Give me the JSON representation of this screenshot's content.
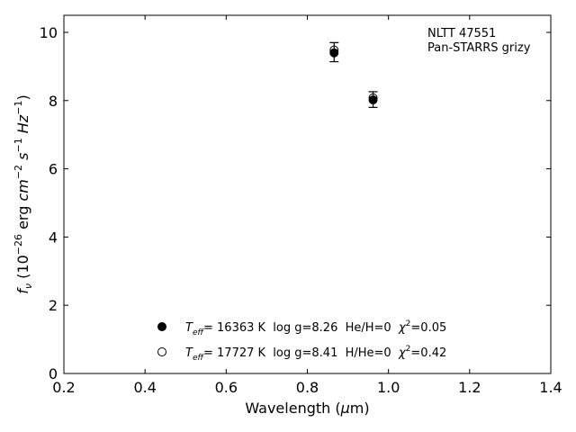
{
  "chart_data": {
    "type": "scatter",
    "annotation_lines": [
      "NLTT 47551",
      "Pan-STARRS grizy"
    ],
    "xlim": [
      0.2,
      1.4
    ],
    "ylim": [
      0,
      10.5
    ],
    "x_ticks": [
      0.2,
      0.4,
      0.6,
      0.8,
      1.0,
      1.2,
      1.4
    ],
    "x_tick_labels": [
      "0.2",
      "0.4",
      "0.6",
      "0.8",
      "1.0",
      "1.2",
      "1.4"
    ],
    "y_ticks": [
      0,
      2,
      4,
      6,
      8,
      10
    ],
    "y_tick_labels": [
      "0",
      "2",
      "4",
      "6",
      "8",
      "10"
    ],
    "xlabel": {
      "base": "Wavelength (",
      "math": "μ",
      "rest": "m)"
    },
    "ylabel": {
      "f": "f",
      "f_sub": "ν",
      "open": " (10",
      "exp": "−26",
      "erg": " erg ",
      "cm": "cm",
      "cm_exp": "−2",
      "s": "s",
      "s_exp": "−1",
      "hz": "Hz",
      "hz_exp": "−1",
      "close": ")"
    },
    "grid": false,
    "legend_position": "lower-center",
    "series": [
      {
        "marker": "filled-circle",
        "color": "#000000",
        "legend": {
          "t": "T",
          "t_sub": "eff",
          "main": "= 16363 K  log g=8.26  He/H=0  ",
          "chi": "χ",
          "chi_exp": "2",
          "chi_val": "=0.05"
        },
        "points": [
          {
            "x": 0.866,
            "y": 9.4
          },
          {
            "x": 0.962,
            "y": 8.02
          }
        ]
      },
      {
        "marker": "open-circle",
        "color": "#000000",
        "legend": {
          "t": "T",
          "t_sub": "eff",
          "main": "= 17727 K  log g=8.41  H/He=0  ",
          "chi": "χ",
          "chi_exp": "2",
          "chi_val": "=0.42"
        },
        "points": [
          {
            "x": 0.866,
            "y": 9.48
          },
          {
            "x": 0.962,
            "y": 8.08
          }
        ]
      }
    ],
    "observed": {
      "marker": "errorbar",
      "color": "#000000",
      "points": [
        {
          "x": 0.866,
          "y": 9.42,
          "yerr": 0.28
        },
        {
          "x": 0.962,
          "y": 8.03,
          "yerr": 0.23
        }
      ]
    }
  }
}
